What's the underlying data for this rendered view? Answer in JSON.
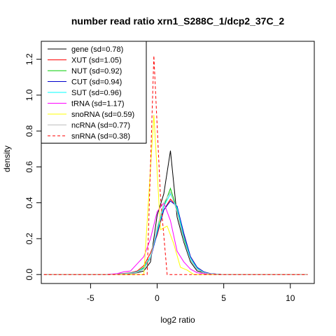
{
  "chart_data": {
    "type": "line",
    "title": "number read ratio xrn1_S288C_1/dcp2_37C_2",
    "xlabel": "log2 ratio",
    "ylabel": "density",
    "xlim": [
      -8.7,
      11.8
    ],
    "ylim": [
      -0.05,
      1.3
    ],
    "xticks": [
      -5,
      0,
      5,
      10
    ],
    "xtick_labels": [
      "-5",
      "0",
      "5",
      "10"
    ],
    "yticks": [
      0.0,
      0.2,
      0.4,
      0.6,
      0.8,
      1.0,
      1.2
    ],
    "ytick_labels": [
      "0.0",
      "0.2",
      "0.4",
      "0.6",
      "0.8",
      "1.0",
      "1.2"
    ],
    "legend_position": "top-left",
    "series": [
      {
        "name": "gene (sd=0.78)",
        "color": "#000000",
        "dash": "solid",
        "x": [
          -8.5,
          -4.0,
          -3.0,
          -2.0,
          -1.5,
          -1.0,
          -0.5,
          0.0,
          0.5,
          1.0,
          1.5,
          2.0,
          2.5,
          3.0,
          3.5,
          4.0,
          5.0,
          11.3
        ],
        "y": [
          0.0,
          0.0,
          0.002,
          0.005,
          0.01,
          0.02,
          0.07,
          0.33,
          0.45,
          0.69,
          0.32,
          0.18,
          0.07,
          0.02,
          0.01,
          0.005,
          0.0,
          0.0
        ]
      },
      {
        "name": "XUT (sd=1.05)",
        "color": "#ff0000",
        "dash": "solid",
        "x": [
          -8.5,
          -4.0,
          -3.0,
          -2.0,
          -1.5,
          -1.0,
          -0.5,
          0.0,
          0.5,
          1.0,
          1.5,
          2.0,
          2.5,
          3.0,
          3.5,
          4.0,
          5.0,
          11.3
        ],
        "y": [
          0.0,
          0.0,
          0.003,
          0.01,
          0.02,
          0.05,
          0.12,
          0.22,
          0.36,
          0.42,
          0.38,
          0.22,
          0.1,
          0.04,
          0.015,
          0.005,
          0.0,
          0.0
        ]
      },
      {
        "name": "NUT (sd=0.92)",
        "color": "#00cc00",
        "dash": "solid",
        "x": [
          -8.5,
          -4.0,
          -3.0,
          -2.0,
          -1.5,
          -1.0,
          -0.5,
          0.0,
          0.5,
          1.0,
          1.5,
          2.0,
          2.5,
          3.0,
          3.5,
          4.0,
          5.0,
          11.3
        ],
        "y": [
          0.0,
          0.0,
          0.002,
          0.008,
          0.015,
          0.04,
          0.1,
          0.25,
          0.38,
          0.48,
          0.36,
          0.2,
          0.08,
          0.03,
          0.01,
          0.004,
          0.0,
          0.0
        ]
      },
      {
        "name": "CUT (sd=0.94)",
        "color": "#0000cc",
        "dash": "solid",
        "x": [
          -8.5,
          -4.0,
          -3.0,
          -2.0,
          -1.5,
          -1.0,
          -0.5,
          0.0,
          0.5,
          1.0,
          1.5,
          2.0,
          2.5,
          3.0,
          3.5,
          4.0,
          5.0,
          11.3
        ],
        "y": [
          0.0,
          0.0,
          0.002,
          0.008,
          0.015,
          0.035,
          0.09,
          0.23,
          0.36,
          0.41,
          0.38,
          0.23,
          0.1,
          0.04,
          0.015,
          0.005,
          0.0,
          0.0
        ]
      },
      {
        "name": "SUT (sd=0.96)",
        "color": "#00ffff",
        "dash": "solid",
        "x": [
          -8.5,
          -4.0,
          -3.0,
          -2.0,
          -1.5,
          -1.0,
          -0.5,
          0.0,
          0.5,
          1.0,
          1.5,
          2.0,
          2.5,
          3.0,
          3.5,
          4.0,
          5.0,
          11.3
        ],
        "y": [
          0.0,
          0.0,
          0.002,
          0.008,
          0.015,
          0.035,
          0.1,
          0.24,
          0.38,
          0.45,
          0.37,
          0.21,
          0.09,
          0.035,
          0.012,
          0.004,
          0.0,
          0.0
        ]
      },
      {
        "name": "tRNA (sd=1.17)",
        "color": "#ff00ff",
        "dash": "solid",
        "x": [
          -8.5,
          -4.0,
          -3.0,
          -2.5,
          -2.0,
          -1.5,
          -1.0,
          -0.5,
          0.0,
          0.5,
          1.0,
          1.5,
          2.0,
          2.5,
          3.0,
          3.5,
          4.0,
          5.0,
          11.3
        ],
        "y": [
          0.0,
          0.0,
          0.005,
          0.015,
          0.02,
          0.06,
          0.1,
          0.2,
          0.35,
          0.4,
          0.3,
          0.13,
          0.07,
          0.03,
          0.01,
          0.005,
          0.0,
          0.0,
          0.0
        ]
      },
      {
        "name": "snoRNA (sd=0.59)",
        "color": "#ffff00",
        "dash": "solid",
        "x": [
          -8.5,
          -1.0,
          -0.25,
          0.25,
          0.75,
          1.25,
          1.75,
          2.25,
          2.75,
          11.3
        ],
        "y": [
          0.0,
          0.0,
          0.89,
          0.25,
          0.27,
          0.17,
          0.04,
          0.025,
          0.0,
          0.0
        ]
      },
      {
        "name": "ncRNA (sd=0.77)",
        "color": "#bebebe",
        "dash": "solid",
        "x": [
          -8.5,
          -4.0,
          -3.0,
          -2.0,
          -1.5,
          -1.0,
          -0.5,
          0.0,
          0.5,
          1.0,
          1.5,
          2.0,
          2.5,
          3.0,
          3.5,
          4.0,
          5.0,
          11.3
        ],
        "y": [
          0.0,
          0.0,
          0.002,
          0.006,
          0.012,
          0.03,
          0.09,
          0.26,
          0.4,
          0.46,
          0.35,
          0.19,
          0.08,
          0.03,
          0.01,
          0.004,
          0.0,
          0.0
        ]
      },
      {
        "name": "snRNA (sd=0.38)",
        "color": "#ff0000",
        "dash": "dashed",
        "x": [
          -8.5,
          -0.75,
          -0.25,
          0.25,
          0.75,
          11.3
        ],
        "y": [
          0.0,
          0.0,
          1.22,
          0.43,
          0.0,
          0.0
        ]
      }
    ]
  }
}
